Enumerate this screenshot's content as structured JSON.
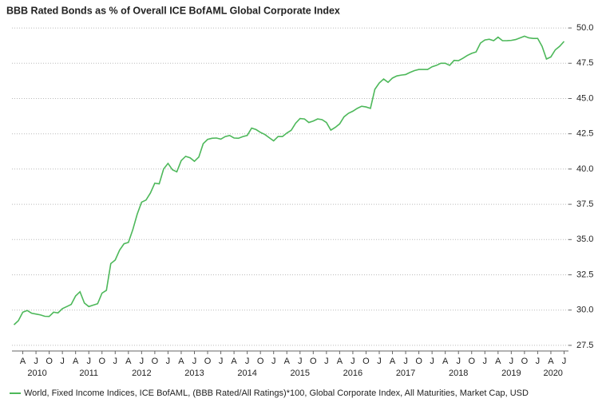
{
  "chart_data": {
    "type": "line",
    "title": "BBB Rated Bonds as % of Overall ICE BofAML Global Corporate Index",
    "x": [
      "2010-02",
      "2010-03",
      "2010-04",
      "2010-05",
      "2010-06",
      "2010-07",
      "2010-08",
      "2010-09",
      "2010-10",
      "2010-11",
      "2010-12",
      "2011-01",
      "2011-02",
      "2011-03",
      "2011-04",
      "2011-05",
      "2011-06",
      "2011-07",
      "2011-08",
      "2011-09",
      "2011-10",
      "2011-11",
      "2011-12",
      "2012-01",
      "2012-02",
      "2012-03",
      "2012-04",
      "2012-05",
      "2012-06",
      "2012-07",
      "2012-08",
      "2012-09",
      "2012-10",
      "2012-11",
      "2012-12",
      "2013-01",
      "2013-02",
      "2013-03",
      "2013-04",
      "2013-05",
      "2013-06",
      "2013-07",
      "2013-08",
      "2013-09",
      "2013-10",
      "2013-11",
      "2013-12",
      "2014-01",
      "2014-02",
      "2014-03",
      "2014-04",
      "2014-05",
      "2014-06",
      "2014-07",
      "2014-08",
      "2014-09",
      "2014-10",
      "2014-11",
      "2014-12",
      "2015-01",
      "2015-02",
      "2015-03",
      "2015-04",
      "2015-05",
      "2015-06",
      "2015-07",
      "2015-08",
      "2015-09",
      "2015-10",
      "2015-11",
      "2015-12",
      "2016-01",
      "2016-02",
      "2016-03",
      "2016-04",
      "2016-05",
      "2016-06",
      "2016-07",
      "2016-08",
      "2016-09",
      "2016-10",
      "2016-11",
      "2016-12",
      "2017-01",
      "2017-02",
      "2017-03",
      "2017-04",
      "2017-05",
      "2017-06",
      "2017-07",
      "2017-08",
      "2017-09",
      "2017-10",
      "2017-11",
      "2017-12",
      "2018-01",
      "2018-02",
      "2018-03",
      "2018-04",
      "2018-05",
      "2018-06",
      "2018-07",
      "2018-08",
      "2018-09",
      "2018-10",
      "2018-11",
      "2018-12",
      "2019-01",
      "2019-02",
      "2019-03",
      "2019-04",
      "2019-05",
      "2019-06",
      "2019-07",
      "2019-08",
      "2019-09",
      "2019-10",
      "2019-11",
      "2019-12",
      "2020-01",
      "2020-02",
      "2020-03",
      "2020-04",
      "2020-05",
      "2020-06",
      "2020-07"
    ],
    "series": [
      {
        "name": "World, Fixed Income Indices, ICE BofAML, (BBB Rated/All Ratings)*100, Global Corporate Index, All Maturities, Market Cap, USD",
        "color": "#4db85a",
        "values": [
          28.96,
          29.25,
          29.85,
          29.97,
          29.78,
          29.72,
          29.66,
          29.56,
          29.55,
          29.85,
          29.8,
          30.1,
          30.25,
          30.4,
          31.0,
          31.3,
          30.5,
          30.25,
          30.35,
          30.45,
          31.2,
          31.4,
          33.3,
          33.55,
          34.25,
          34.7,
          34.8,
          35.7,
          36.8,
          37.65,
          37.8,
          38.3,
          39.0,
          38.95,
          40.0,
          40.4,
          39.95,
          39.8,
          40.6,
          40.9,
          40.8,
          40.55,
          40.85,
          41.8,
          42.1,
          42.18,
          42.2,
          42.12,
          42.3,
          42.38,
          42.2,
          42.18,
          42.3,
          42.38,
          42.9,
          42.8,
          42.6,
          42.45,
          42.22,
          42.0,
          42.3,
          42.3,
          42.55,
          42.75,
          43.25,
          43.58,
          43.55,
          43.3,
          43.4,
          43.55,
          43.5,
          43.3,
          42.76,
          42.95,
          43.2,
          43.7,
          43.95,
          44.1,
          44.3,
          44.45,
          44.4,
          44.3,
          45.65,
          46.1,
          46.38,
          46.15,
          46.45,
          46.6,
          46.66,
          46.7,
          46.85,
          46.98,
          47.06,
          47.06,
          47.06,
          47.25,
          47.35,
          47.5,
          47.5,
          47.35,
          47.7,
          47.68,
          47.85,
          48.05,
          48.2,
          48.3,
          48.93,
          49.15,
          49.2,
          49.1,
          49.35,
          49.1,
          49.1,
          49.12,
          49.18,
          49.3,
          49.42,
          49.3,
          49.26,
          49.26,
          48.7,
          47.8,
          47.95,
          48.45,
          48.7,
          49.05
        ]
      }
    ],
    "xlim": [
      "2010-01",
      "2020-08"
    ],
    "xticks": [
      {
        "value": "2010-04",
        "label": "A"
      },
      {
        "value": "2010-07",
        "label": "J"
      },
      {
        "value": "2010-10",
        "label": "O"
      },
      {
        "value": "2011-01",
        "label": "J"
      },
      {
        "value": "2011-04",
        "label": "A"
      },
      {
        "value": "2011-07",
        "label": "J"
      },
      {
        "value": "2011-10",
        "label": "O"
      },
      {
        "value": "2012-01",
        "label": "J"
      },
      {
        "value": "2012-04",
        "label": "A"
      },
      {
        "value": "2012-07",
        "label": "J"
      },
      {
        "value": "2012-10",
        "label": "O"
      },
      {
        "value": "2013-01",
        "label": "J"
      },
      {
        "value": "2013-04",
        "label": "A"
      },
      {
        "value": "2013-07",
        "label": "J"
      },
      {
        "value": "2013-10",
        "label": "O"
      },
      {
        "value": "2014-01",
        "label": "J"
      },
      {
        "value": "2014-04",
        "label": "A"
      },
      {
        "value": "2014-07",
        "label": "J"
      },
      {
        "value": "2014-10",
        "label": "O"
      },
      {
        "value": "2015-01",
        "label": "J"
      },
      {
        "value": "2015-04",
        "label": "A"
      },
      {
        "value": "2015-07",
        "label": "J"
      },
      {
        "value": "2015-10",
        "label": "O"
      },
      {
        "value": "2016-01",
        "label": "J"
      },
      {
        "value": "2016-04",
        "label": "A"
      },
      {
        "value": "2016-07",
        "label": "J"
      },
      {
        "value": "2016-10",
        "label": "O"
      },
      {
        "value": "2017-01",
        "label": "J"
      },
      {
        "value": "2017-04",
        "label": "A"
      },
      {
        "value": "2017-07",
        "label": "J"
      },
      {
        "value": "2017-10",
        "label": "O"
      },
      {
        "value": "2018-01",
        "label": "J"
      },
      {
        "value": "2018-04",
        "label": "A"
      },
      {
        "value": "2018-07",
        "label": "J"
      },
      {
        "value": "2018-10",
        "label": "O"
      },
      {
        "value": "2019-01",
        "label": "J"
      },
      {
        "value": "2019-04",
        "label": "A"
      },
      {
        "value": "2019-07",
        "label": "J"
      },
      {
        "value": "2019-10",
        "label": "O"
      },
      {
        "value": "2020-01",
        "label": "J"
      },
      {
        "value": "2020-04",
        "label": "A"
      },
      {
        "value": "2020-07",
        "label": "J"
      }
    ],
    "year_labels": [
      "2010",
      "2011",
      "2012",
      "2013",
      "2014",
      "2015",
      "2016",
      "2017",
      "2018",
      "2019",
      "2020"
    ],
    "ylim": [
      27.1,
      50.4
    ],
    "yticks": [
      {
        "value": 27.5,
        "label": "27.5"
      },
      {
        "value": 30,
        "label": "30.0"
      },
      {
        "value": 32.5,
        "label": "32.5"
      },
      {
        "value": 35,
        "label": "35.0"
      },
      {
        "value": 37.5,
        "label": "37.5"
      },
      {
        "value": 40,
        "label": "40.0"
      },
      {
        "value": 42.5,
        "label": "42.5"
      },
      {
        "value": 45,
        "label": "45.0"
      },
      {
        "value": 47.5,
        "label": "47.5"
      },
      {
        "value": 50,
        "label": "50.0"
      }
    ],
    "y_axis_side": "right",
    "grid": true,
    "legend": "bottom-left"
  }
}
